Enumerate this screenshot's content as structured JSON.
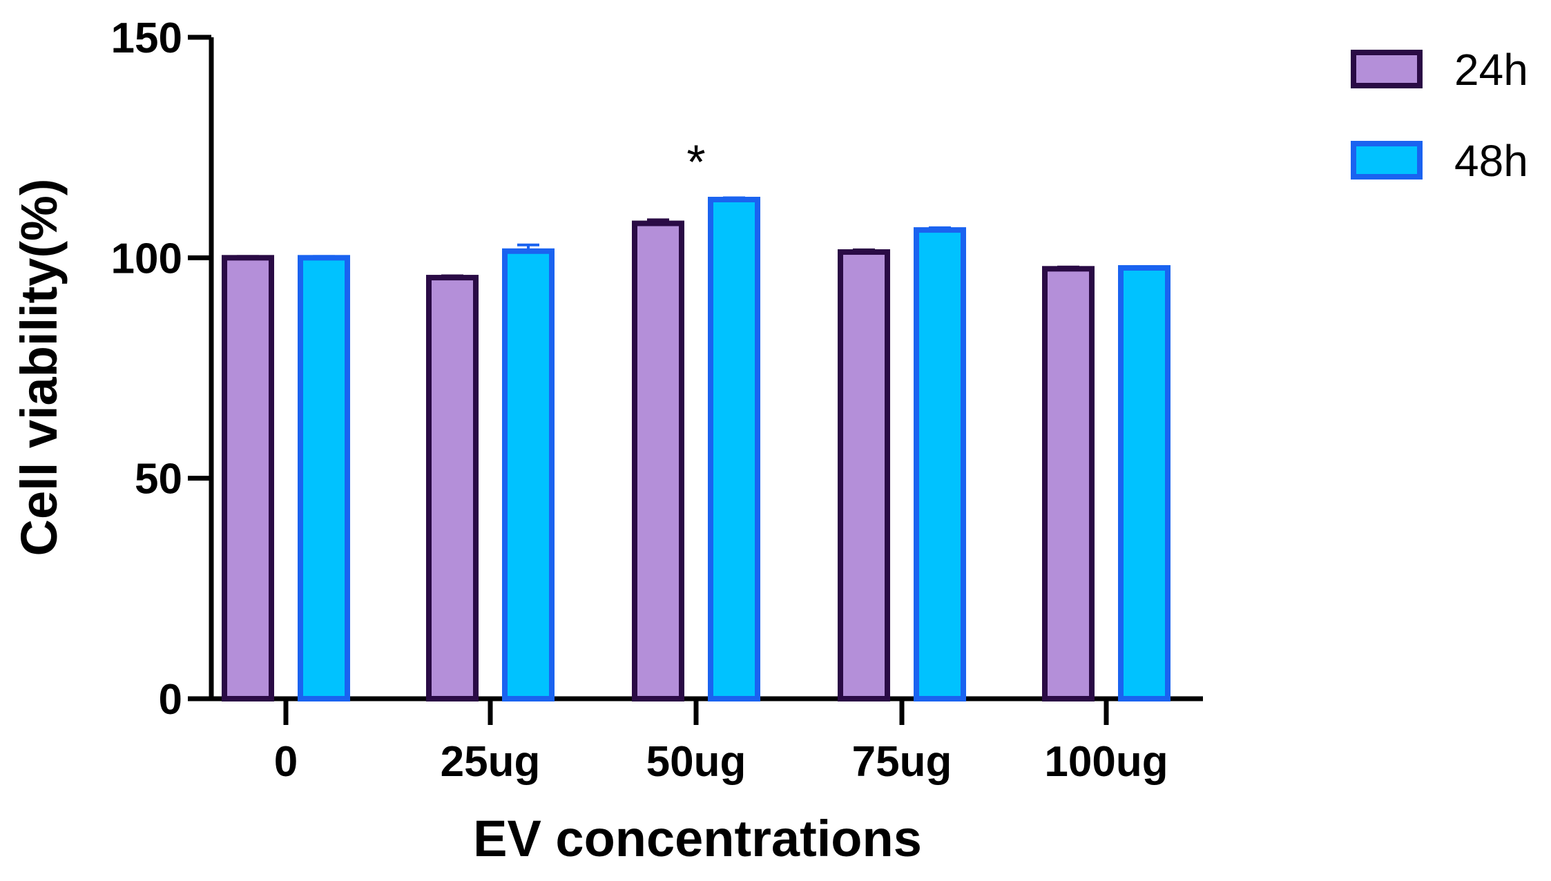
{
  "chart_data": {
    "type": "bar",
    "title": "",
    "xlabel": "EV concentrations",
    "ylabel": "Cell viability(%)",
    "ylim": [
      0,
      150
    ],
    "yticks": [
      0,
      50,
      100,
      150
    ],
    "categories": [
      "0",
      "25ug",
      "50ug",
      "75ug",
      "100ug"
    ],
    "series": [
      {
        "name": "24h",
        "values": [
          100,
          95.5,
          107.8,
          101.3,
          97.5
        ],
        "errors": [
          0.3,
          0.4,
          0.8,
          0.5,
          0.4
        ],
        "fill": "#b48fd9",
        "stroke": "#2a0b45"
      },
      {
        "name": "48h",
        "values": [
          100,
          101.5,
          113.2,
          106.3,
          97.7
        ],
        "errors": [
          0.3,
          1.4,
          0.4,
          0.5,
          0.3
        ],
        "fill": "#00c2ff",
        "stroke": "#1a63f0"
      }
    ],
    "annotations": [
      {
        "category": "50ug",
        "text": "*"
      }
    ],
    "legend_position": "top-right",
    "grid": false
  }
}
